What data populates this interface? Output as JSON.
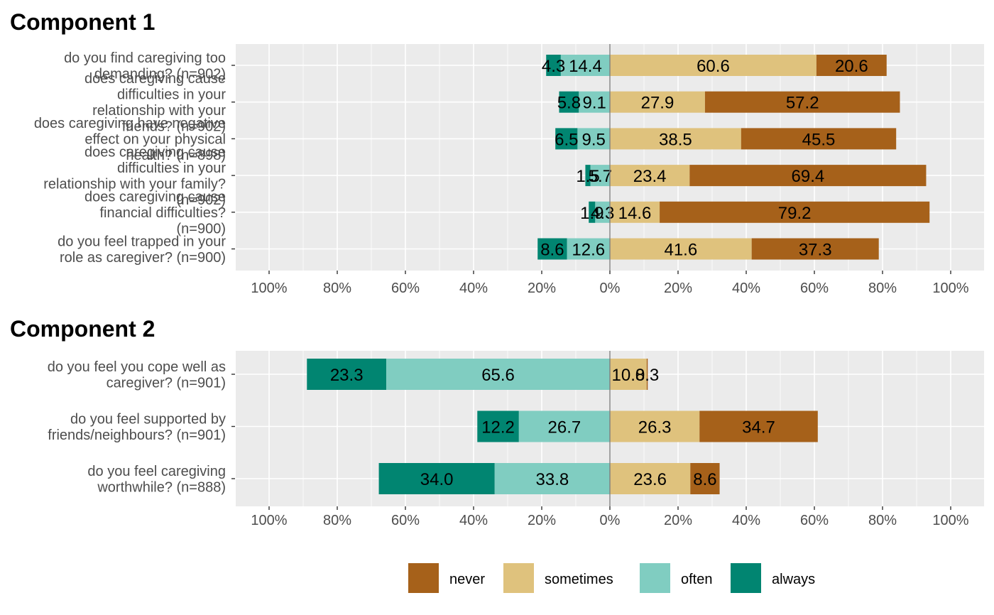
{
  "chart_data": {
    "type": "bar",
    "orientation": "horizontal",
    "layout": "diverging-stacked",
    "x_tick_labels": [
      "100%",
      "80%",
      "60%",
      "40%",
      "20%",
      "0%",
      "20%",
      "40%",
      "60%",
      "80%",
      "100%"
    ],
    "xlim": [
      -100,
      100
    ],
    "grid": true,
    "legend_position": "bottom",
    "categories_order": [
      "never",
      "sometimes",
      "often",
      "always"
    ],
    "colors": {
      "never": "#a6611a",
      "sometimes": "#dfc27d",
      "often": "#80cdc1",
      "always": "#018571"
    },
    "legend": [
      {
        "key": "never",
        "label": "never"
      },
      {
        "key": "sometimes",
        "label": "sometimes"
      },
      {
        "key": "often",
        "label": "often"
      },
      {
        "key": "always",
        "label": "always"
      }
    ],
    "panels": [
      {
        "title": "Component 1",
        "rows": [
          {
            "label_lines": [
              "do you find caregiving too",
              "demanding? (n=902)"
            ],
            "always": 4.3,
            "often": 14.4,
            "sometimes": 60.6,
            "never": 20.6
          },
          {
            "label_lines": [
              "does caregiving cause",
              "difficulties in your",
              "relationship with your",
              "friends? (n=902)"
            ],
            "always": 5.8,
            "often": 9.1,
            "sometimes": 27.9,
            "never": 57.2
          },
          {
            "label_lines": [
              "does caregiving have negative",
              "effect on your physical",
              "health? (n=898)"
            ],
            "always": 6.5,
            "often": 9.5,
            "sometimes": 38.5,
            "never": 45.5
          },
          {
            "label_lines": [
              "does caregiving cause",
              "difficulties in your",
              "relationship with your family?",
              "(n=902)"
            ],
            "always": 1.5,
            "often": 5.7,
            "sometimes": 23.4,
            "never": 69.4
          },
          {
            "label_lines": [
              "does caregiving cause",
              "financial difficulties?",
              "(n=900)"
            ],
            "always": 1.9,
            "often": 4.3,
            "sometimes": 14.6,
            "never": 79.2
          },
          {
            "label_lines": [
              "do you feel trapped in your",
              "role as caregiver? (n=900)"
            ],
            "always": 8.6,
            "often": 12.6,
            "sometimes": 41.6,
            "never": 37.3
          }
        ]
      },
      {
        "title": "Component 2",
        "rows": [
          {
            "label_lines": [
              "do you feel you cope well as",
              "caregiver? (n=901)"
            ],
            "always": 23.3,
            "often": 65.6,
            "sometimes": 10.8,
            "never": 0.3
          },
          {
            "label_lines": [
              "do you feel supported by",
              "friends/neighbours? (n=901)"
            ],
            "always": 12.2,
            "often": 26.7,
            "sometimes": 26.3,
            "never": 34.7
          },
          {
            "label_lines": [
              "do you feel caregiving",
              "worthwhile? (n=888)"
            ],
            "always": 34.0,
            "often": 33.8,
            "sometimes": 23.6,
            "never": 8.6
          }
        ]
      }
    ]
  }
}
